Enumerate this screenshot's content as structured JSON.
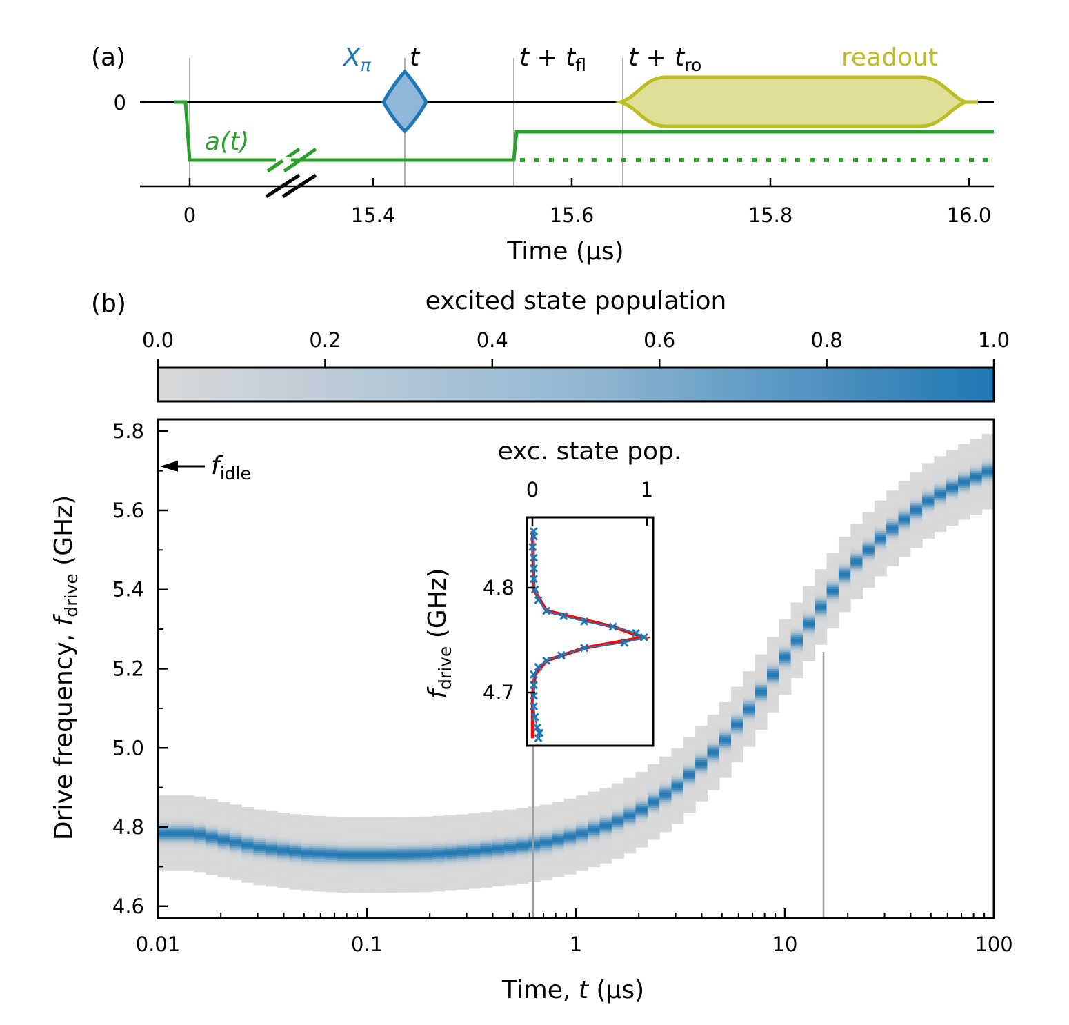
{
  "panel_a": {
    "label": "(a)",
    "xlabel": "Time (µs)",
    "ytick": "0",
    "xticks": [
      "0",
      "15.4",
      "15.6",
      "15.8",
      "16.0"
    ],
    "annotations": {
      "xpi_main": "X",
      "xpi_sub": "π",
      "t": "t",
      "t_fl_main": "t + t",
      "t_fl_sub": "fl",
      "t_ro_main": "t + t",
      "t_ro_sub": "ro",
      "readout": "readout",
      "a_t": "a(t)"
    },
    "colors": {
      "xpi": "#1f77b4",
      "xpi_fill": "#8fb7da",
      "readout": "#bcbd22",
      "readout_fill": "#dfe096",
      "a": "#2ca02c"
    }
  },
  "panel_b": {
    "label": "(b)",
    "colorbar": {
      "title": "excited state population",
      "ticks": [
        "0.0",
        "0.2",
        "0.4",
        "0.6",
        "0.8",
        "1.0"
      ],
      "color_low": "#d9d9d9",
      "color_high": "#1f77b4"
    },
    "xlabel_main": "Time, ",
    "xlabel_var": "t",
    "xlabel_unit": " (µs)",
    "ylabel_main": "Drive frequency, ",
    "ylabel_var": "f",
    "ylabel_sub": "drive",
    "ylabel_unit": " (GHz)",
    "xticks": [
      "0.01",
      "0.1",
      "1",
      "10",
      "100"
    ],
    "yticks": [
      "4.6",
      "4.8",
      "5.0",
      "5.2",
      "5.4",
      "5.6",
      "5.8"
    ],
    "f_idle_var": "f",
    "f_idle_sub": "idle",
    "inset": {
      "title": "exc. state pop.",
      "xticks": [
        "0",
        "1"
      ],
      "yticks": [
        "4.7",
        "4.8"
      ],
      "ylabel_var": "f",
      "ylabel_sub": "drive",
      "ylabel_unit": " (GHz)"
    }
  },
  "chart_data": [
    {
      "type": "line",
      "title": "",
      "xlabel": "Time (µs)",
      "x_ticks": [
        "0",
        "15.4",
        "15.6",
        "15.8",
        "16.0"
      ],
      "xlim": [
        15.24,
        16.03
      ],
      "axis_break": "between 0 and 15.4",
      "series": [
        {
          "name": "a(t)",
          "color": "#2ca02c",
          "description_values": {
            "before_0": 0,
            "from_0_to_t_fl": -1,
            "after_t_fl_solid": -0.4,
            "after_t_fl_dotted": -1
          }
        }
      ],
      "pulses": [
        {
          "name": "X_π",
          "center_us": 15.43,
          "color": "#1f77b4"
        },
        {
          "name": "readout",
          "start_us": 15.65,
          "end_us": 16.01,
          "color": "#bcbd22"
        }
      ],
      "markers_us": {
        "t": 15.43,
        "t + t_fl": 15.54,
        "t + t_ro": 15.65
      }
    },
    {
      "type": "heatmap",
      "title": "",
      "xlabel": "Time, t (µs)",
      "ylabel": "Drive frequency, f_drive (GHz)",
      "x_scale": "log",
      "xlim": [
        0.01,
        100
      ],
      "ylim": [
        4.57,
        5.83
      ],
      "colorbar": {
        "label": "excited state population",
        "range": [
          0,
          1
        ]
      },
      "f_idle_ghz": 5.71,
      "ridge": {
        "t_us": [
          0.01,
          0.012,
          0.015,
          0.02,
          0.03,
          0.05,
          0.08,
          0.12,
          0.2,
          0.3,
          0.5,
          0.7,
          1,
          1.5,
          2,
          3,
          5,
          7,
          10,
          15,
          20,
          30,
          50,
          70,
          100
        ],
        "f_center_ghz": [
          4.785,
          4.785,
          4.785,
          4.77,
          4.75,
          4.735,
          4.73,
          4.73,
          4.732,
          4.738,
          4.75,
          4.76,
          4.78,
          4.81,
          4.84,
          4.9,
          5.01,
          5.11,
          5.23,
          5.36,
          5.45,
          5.54,
          5.63,
          5.67,
          5.705
        ],
        "band_halfwidth_ghz": [
          0.095,
          0.095,
          0.095,
          0.095,
          0.095,
          0.095,
          0.095,
          0.095,
          0.095,
          0.095,
          0.095,
          0.095,
          0.095,
          0.095,
          0.095,
          0.095,
          0.095,
          0.095,
          0.095,
          0.095,
          0.095,
          0.095,
          0.095,
          0.095,
          0.095
        ]
      },
      "vertical_lines_t_us": [
        0.63,
        15.4
      ]
    },
    {
      "type": "line",
      "title": "exc. state pop.",
      "ylabel": "f_drive (GHz)",
      "xlim": [
        -0.05,
        1.05
      ],
      "ylim": [
        4.653,
        4.868
      ],
      "y_ticks": [
        4.7,
        4.8
      ],
      "series": [
        {
          "name": "",
          "marker": "x",
          "color": "#1f77b4",
          "f_ghz": [
            4.66,
            4.665,
            4.67,
            4.68,
            4.69,
            4.7,
            4.71,
            4.72,
            4.727,
            4.733,
            4.738,
            4.745,
            4.75,
            4.755,
            4.759,
            4.765,
            4.77,
            4.775,
            4.78,
            4.79,
            4.8,
            4.81,
            4.82,
            4.83,
            4.84,
            4.85,
            4.855
          ],
          "pop": [
            0.05,
            0.06,
            0.04,
            0.02,
            0.01,
            0.01,
            0.01,
            0.01,
            0.05,
            0.12,
            0.25,
            0.45,
            0.8,
            0.97,
            0.9,
            0.7,
            0.45,
            0.27,
            0.12,
            0.05,
            0.02,
            0.01,
            0.01,
            0.01,
            0.0,
            0.01,
            0.01
          ]
        },
        {
          "name": "",
          "style": "fit",
          "color": "#ff0000",
          "f_ghz": [
            4.66,
            4.7,
            4.72,
            4.733,
            4.745,
            4.755,
            4.765,
            4.78,
            4.8,
            4.855
          ],
          "pop": [
            0.0,
            0.0,
            0.02,
            0.12,
            0.45,
            0.97,
            0.7,
            0.12,
            0.01,
            0.0
          ]
        }
      ]
    }
  ]
}
